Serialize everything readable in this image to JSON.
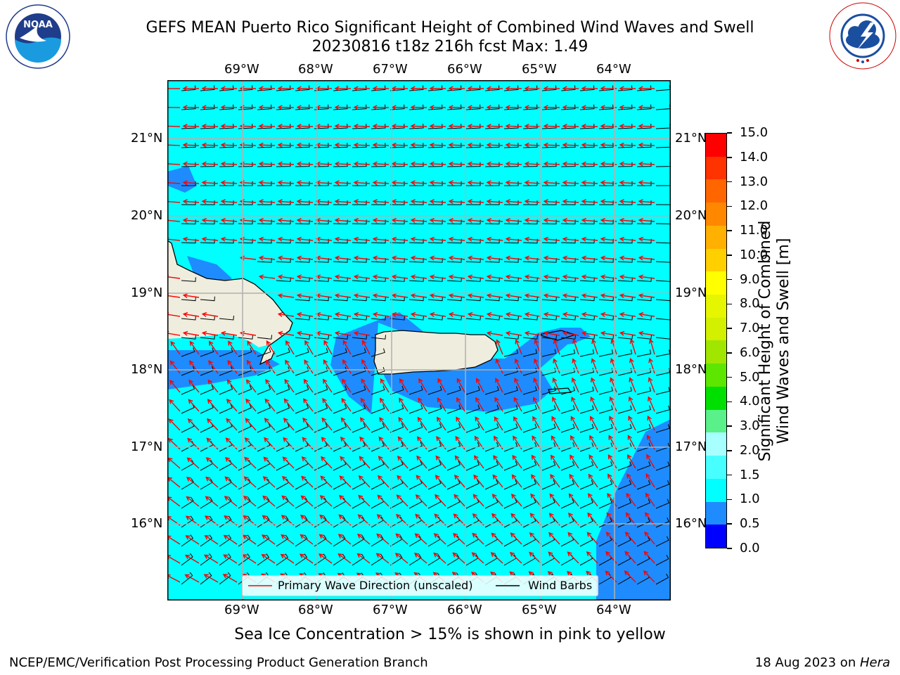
{
  "header": {
    "title_line1": "GEFS MEAN Puerto Rico Significant Height of Combined Wind Waves and Swell",
    "title_line2": "20230816 t18z 216h fcst   Max: 1.49"
  },
  "logos": {
    "left": {
      "icon": "noaa-logo",
      "text": "NOAA"
    },
    "right": {
      "icon": "nws-logo",
      "text": "NATIONAL WEATHER SERVICE"
    }
  },
  "map": {
    "lon_labels": [
      "69°W",
      "68°W",
      "67°W",
      "66°W",
      "65°W",
      "64°W"
    ],
    "lat_labels": [
      "21°N",
      "20°N",
      "19°N",
      "18°N",
      "17°N",
      "16°N"
    ],
    "legend": {
      "wave": "Primary Wave Direction (unscaled)",
      "wind": "Wind Barbs"
    },
    "colors": {
      "ocean": "#00ffff",
      "lowband": "#1e8cff",
      "land": "#efedde",
      "arrow": "#ff0000",
      "barb": "#000000"
    }
  },
  "colorbar": {
    "label": "Significant Height of Combined Wind Waves and Swell [m]",
    "label_line1": "Significant Height of Combined",
    "label_line2": "Wind Waves and Swell [m]",
    "ticks": [
      "15.0",
      "14.0",
      "13.0",
      "12.0",
      "11.0",
      "10.0",
      "9.0",
      "8.0",
      "7.0",
      "6.0",
      "5.0",
      "4.0",
      "3.0",
      "2.0",
      "1.5",
      "1.0",
      "0.5",
      "0.0"
    ],
    "colors_bottom_to_top": [
      "#0000ff",
      "#1e8cff",
      "#00ffff",
      "#48ffff",
      "#a8ffff",
      "#5af08a",
      "#00e000",
      "#5de600",
      "#a0e600",
      "#d2f000",
      "#e6f500",
      "#ffff00",
      "#ffd000",
      "#ffb000",
      "#ff8800",
      "#ff6600",
      "#ff3300",
      "#ff0000"
    ]
  },
  "footer": {
    "caption": "Sea Ice Concentration > 15% is shown in pink to yellow",
    "left": "NCEP/EMC/Verification Post Processing Product Generation Branch",
    "date": "18 Aug 2023 on ",
    "machine": "Hera"
  }
}
